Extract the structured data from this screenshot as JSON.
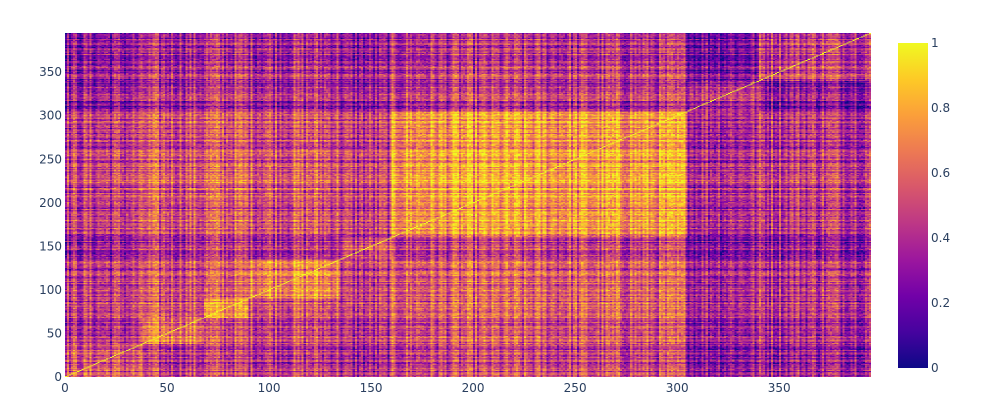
{
  "chart_data": {
    "type": "heatmap",
    "title": "",
    "xlabel": "",
    "ylabel": "",
    "n": 395,
    "xlim": [
      0,
      395
    ],
    "ylim": [
      0,
      395
    ],
    "x_ticks": [
      "0",
      "50",
      "100",
      "150",
      "200",
      "250",
      "300",
      "350"
    ],
    "y_ticks": [
      "0",
      "50",
      "100",
      "150",
      "200",
      "250",
      "300",
      "350"
    ],
    "x_tick_values": [
      0,
      50,
      100,
      150,
      200,
      250,
      300,
      350
    ],
    "y_tick_values": [
      0,
      50,
      100,
      150,
      200,
      250,
      300,
      350
    ],
    "colorscale": {
      "name": "Plasma",
      "min": 0,
      "max": 1,
      "ticks": [
        "0",
        "0.2",
        "0.4",
        "0.6",
        "0.8",
        "1"
      ],
      "tick_values": [
        0,
        0.2,
        0.4,
        0.6,
        0.8,
        1
      ],
      "colors": [
        "#0d0887",
        "#46039f",
        "#7201a8",
        "#9c179e",
        "#bd3786",
        "#d8576b",
        "#ed7953",
        "#fb9f3a",
        "#fdca26",
        "#f0f921"
      ]
    },
    "diagonal_value": 1,
    "cluster_blocks": [
      {
        "from": 0,
        "to": 38,
        "level": 0.4
      },
      {
        "from": 38,
        "to": 68,
        "level": 0.55
      },
      {
        "from": 68,
        "to": 90,
        "level": 0.62
      },
      {
        "from": 90,
        "to": 135,
        "level": 0.58
      },
      {
        "from": 135,
        "to": 160,
        "level": 0.38
      },
      {
        "from": 160,
        "to": 305,
        "level": 0.62
      },
      {
        "from": 305,
        "to": 340,
        "level": 0.3
      },
      {
        "from": 340,
        "to": 395,
        "level": 0.4
      }
    ]
  }
}
